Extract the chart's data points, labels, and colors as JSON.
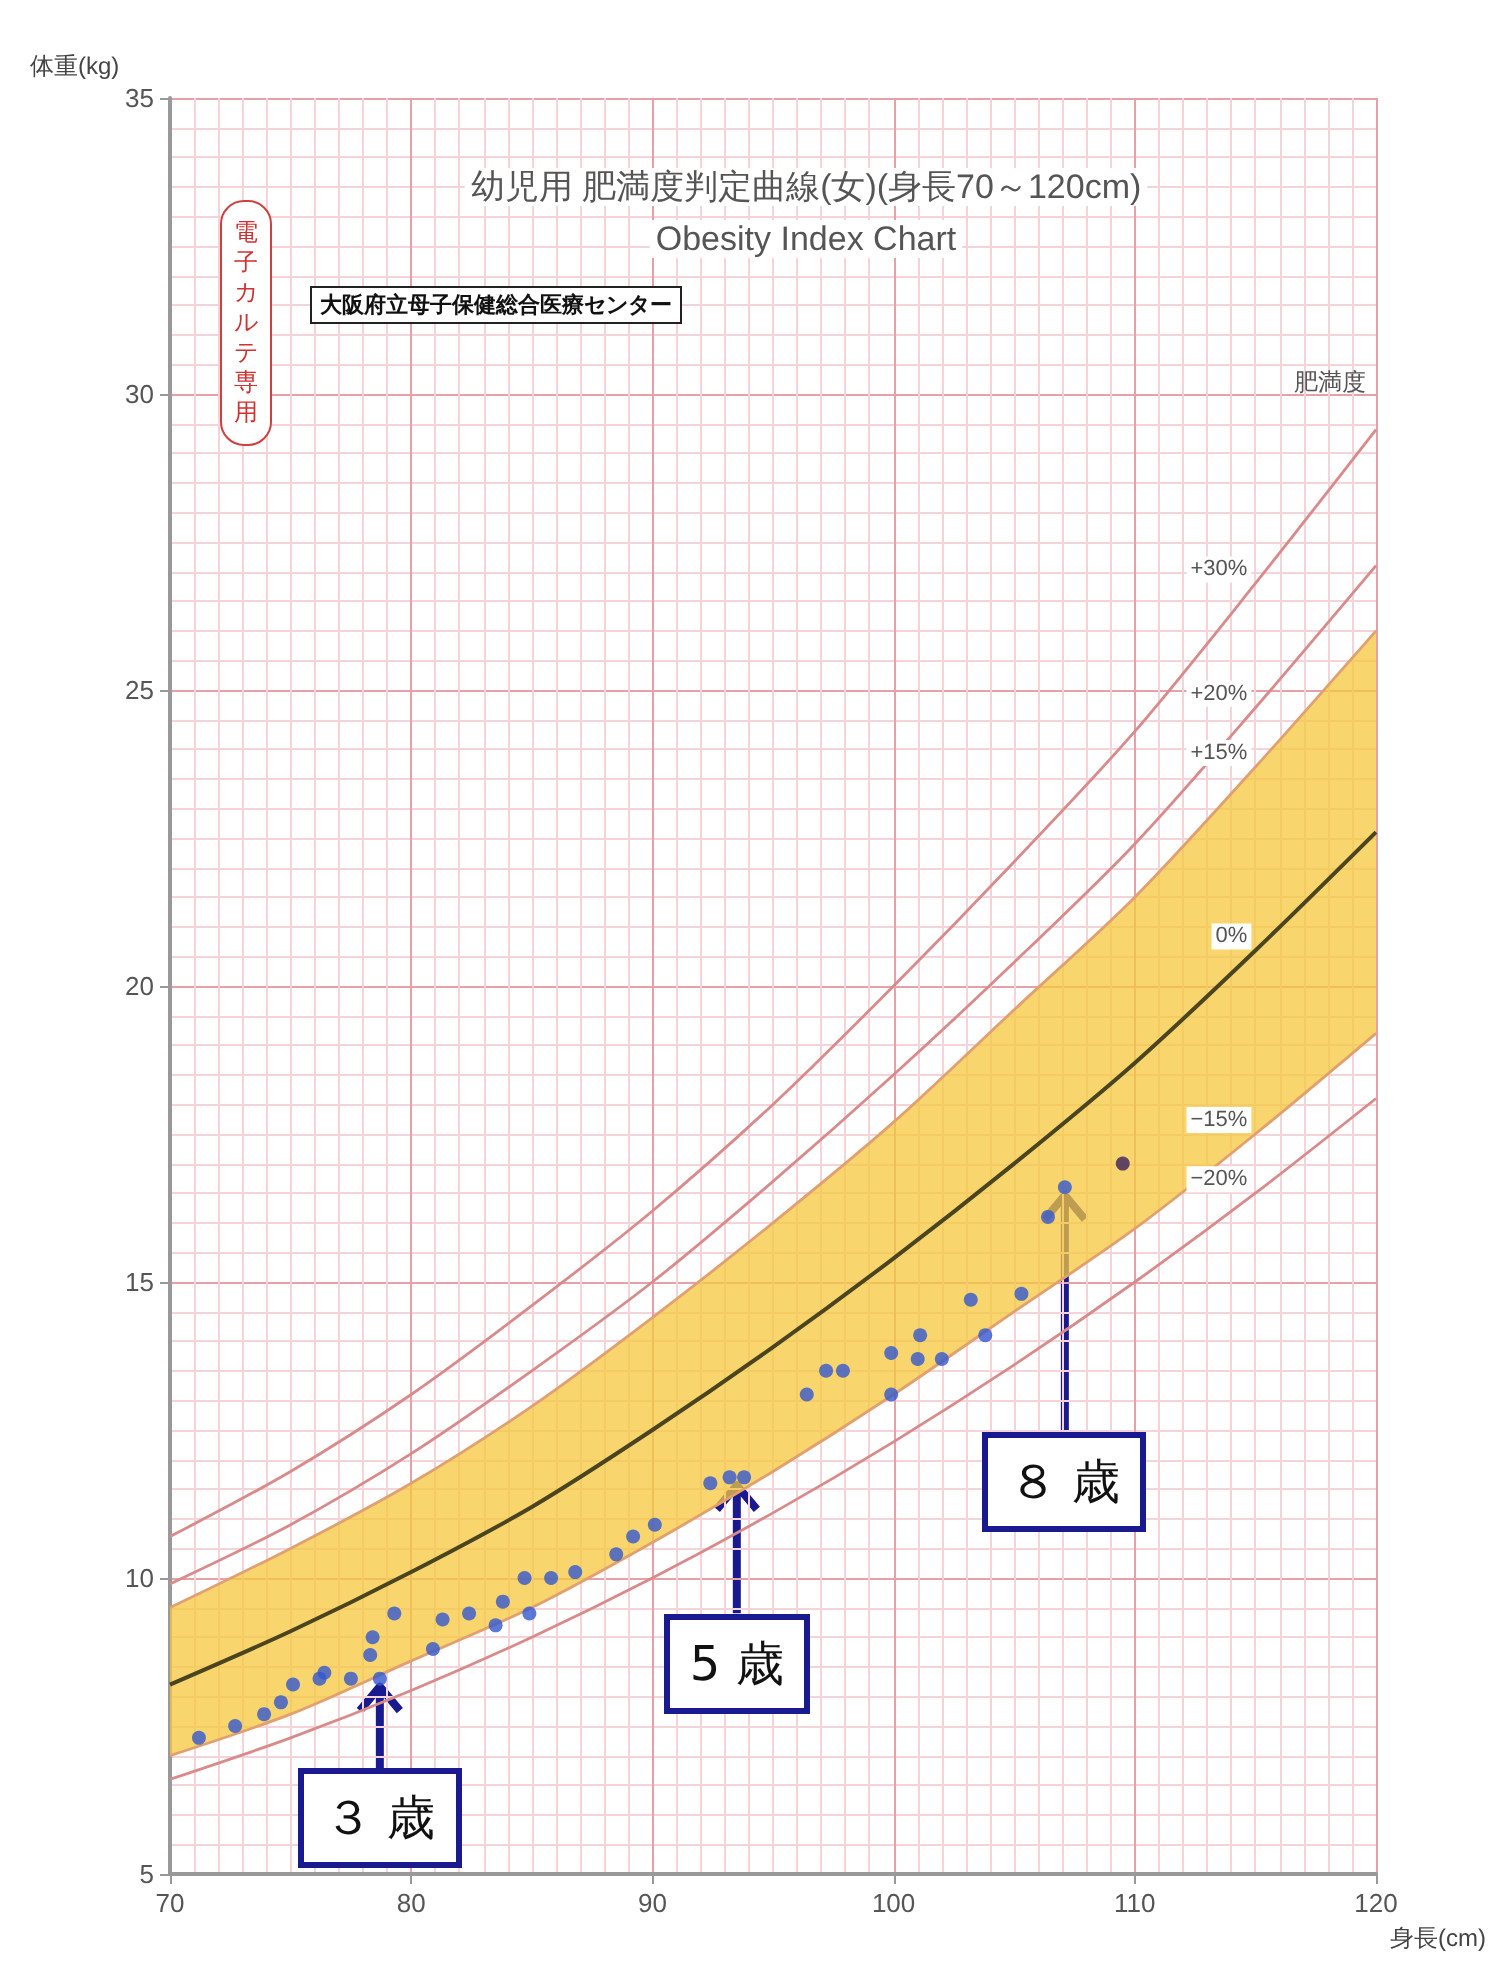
{
  "chart_data": {
    "type": "line",
    "title": "幼児用 肥満度判定曲線(女)(身長70～120cm)",
    "subtitle": "Obesity Index Chart",
    "xlabel": "身長(cm)",
    "ylabel": "体重(kg)",
    "legend_title": "肥満度",
    "x": [
      70,
      75,
      80,
      85,
      90,
      95,
      100,
      105,
      110,
      115,
      120
    ],
    "xlim": [
      70,
      120
    ],
    "ylim": [
      5,
      35
    ],
    "xticks": [
      70,
      80,
      90,
      100,
      110,
      120
    ],
    "yticks": [
      5,
      10,
      15,
      20,
      25,
      30,
      35
    ],
    "grid": true,
    "series": [
      {
        "name": "+30%",
        "color": "#d98a8a",
        "values": [
          10.7,
          11.8,
          13.1,
          14.6,
          16.2,
          18.0,
          20.0,
          22.1,
          24.3,
          26.8,
          29.4
        ]
      },
      {
        "name": "+20%",
        "color": "#d98a8a",
        "values": [
          9.9,
          10.9,
          12.1,
          13.5,
          15.0,
          16.7,
          18.5,
          20.4,
          22.4,
          24.7,
          27.1
        ]
      },
      {
        "name": "+15%",
        "color": "#e0a070",
        "values": [
          9.5,
          10.5,
          11.6,
          12.9,
          14.4,
          16.0,
          17.7,
          19.6,
          21.5,
          23.7,
          26.0
        ]
      },
      {
        "name": "0%",
        "color": "#4a4420",
        "values": [
          8.2,
          9.1,
          10.1,
          11.2,
          12.5,
          13.9,
          15.4,
          17.0,
          18.7,
          20.6,
          22.6
        ],
        "lower": [
          7.0,
          7.7,
          8.6,
          9.5,
          10.6,
          11.8,
          13.1,
          14.5,
          15.9,
          17.5,
          19.2
        ],
        "upper": [
          9.5,
          10.5,
          11.6,
          12.9,
          14.4,
          16.0,
          17.7,
          19.6,
          21.5,
          23.7,
          26.0
        ]
      },
      {
        "name": "−15%",
        "color": "#e0a070",
        "values": [
          7.0,
          7.7,
          8.6,
          9.5,
          10.6,
          11.8,
          13.1,
          14.5,
          15.9,
          17.5,
          19.2
        ]
      },
      {
        "name": "−20%",
        "color": "#d98a8a",
        "values": [
          6.6,
          7.3,
          8.1,
          9.0,
          10.0,
          11.1,
          12.3,
          13.6,
          15.0,
          16.5,
          18.1
        ]
      },
      {
        "type": "scatter",
        "marker": "circle",
        "color": "#3358d0",
        "x": [
          71.2,
          72.7,
          73.9,
          74.6,
          75.1,
          76.2,
          76.4,
          77.5,
          78.3,
          78.7,
          78.4,
          79.3,
          80.9,
          81.3,
          82.4,
          83.5,
          83.8,
          84.7,
          84.9,
          85.8,
          86.8,
          88.5,
          89.2,
          90.1,
          92.4,
          93.2,
          93.8,
          96.4,
          97.2,
          97.9,
          99.9,
          99.9,
          101.0,
          101.1,
          102.0,
          103.2,
          103.8,
          105.3,
          106.4,
          107.1,
          109.5
        ],
        "values": [
          7.3,
          7.5,
          7.7,
          7.9,
          8.2,
          8.3,
          8.4,
          8.3,
          8.7,
          8.3,
          9.0,
          9.4,
          8.8,
          9.3,
          9.4,
          9.2,
          9.6,
          10.0,
          9.4,
          10.0,
          10.1,
          10.4,
          10.7,
          10.9,
          11.6,
          11.7,
          11.7,
          13.1,
          13.5,
          13.5,
          13.1,
          13.8,
          13.7,
          14.1,
          13.7,
          14.7,
          14.1,
          14.8,
          16.1,
          16.6,
          17.0
        ],
        "colors": [
          "#3358d0",
          "#3358d0",
          "#3358d0",
          "#3358d0",
          "#3358d0",
          "#3358d0",
          "#3358d0",
          "#3358d0",
          "#3358d0",
          "#3358d0",
          "#3358d0",
          "#3358d0",
          "#3358d0",
          "#3358d0",
          "#3358d0",
          "#3358d0",
          "#3358d0",
          "#3358d0",
          "#3358d0",
          "#3358d0",
          "#3358d0",
          "#3358d0",
          "#3358d0",
          "#3358d0",
          "#3358d0",
          "#3358d0",
          "#3358d0",
          "#3358d0",
          "#3358d0",
          "#3358d0",
          "#3358d0",
          "#3358d0",
          "#3358d0",
          "#3358d0",
          "#3358d0",
          "#3358d0",
          "#3358d0",
          "#3358d0",
          "#3358d0",
          "#3358d0",
          "#3a1f5c"
        ]
      }
    ],
    "annotations": [
      "大阪府立母子保健総合医療センター",
      "電子カルテ専用",
      {
        "text": "３ 歳",
        "x": 78.7,
        "y": 8.3
      },
      {
        "text": "5 歳",
        "x": 93.5,
        "y": 11.7
      },
      {
        "text": "８ 歳",
        "x": 107.1,
        "y": 16.6
      }
    ]
  }
}
